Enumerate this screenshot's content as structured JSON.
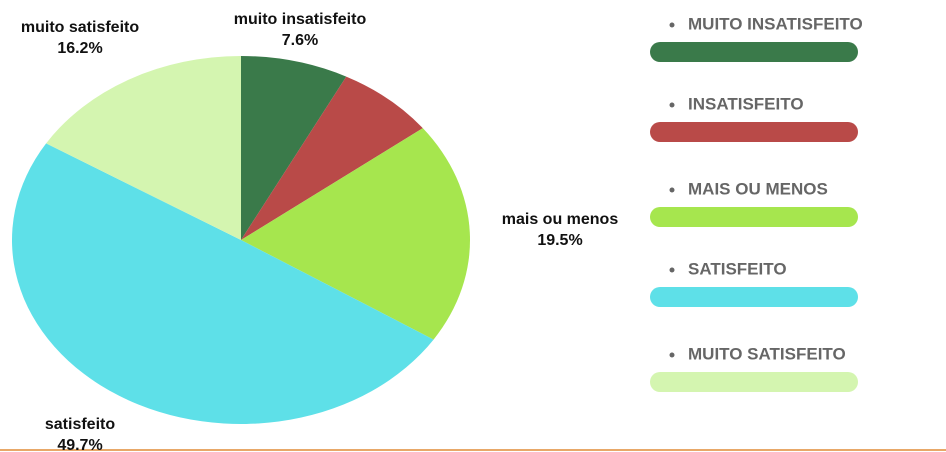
{
  "chart_data": {
    "type": "pie",
    "categories": [
      "muito insatisfeito",
      null,
      "mais ou menos",
      "satisfeito",
      "muito satisfeito"
    ],
    "values": [
      7.6,
      7.0,
      19.5,
      49.7,
      16.2
    ],
    "value_labels": [
      "7.6%",
      null,
      "19.5%",
      "49.7%",
      "16.2%"
    ],
    "colors": [
      "#3a7a4a",
      "#b94a48",
      "#a6e64e",
      "#5ee0e8",
      "#d4f5b0"
    ],
    "legend": [
      "MUITO INSATISFEITO",
      "INSATISFEITO",
      "MAIS OU MENOS",
      "SATISFEITO",
      "MUITO SATISFEITO"
    ]
  }
}
